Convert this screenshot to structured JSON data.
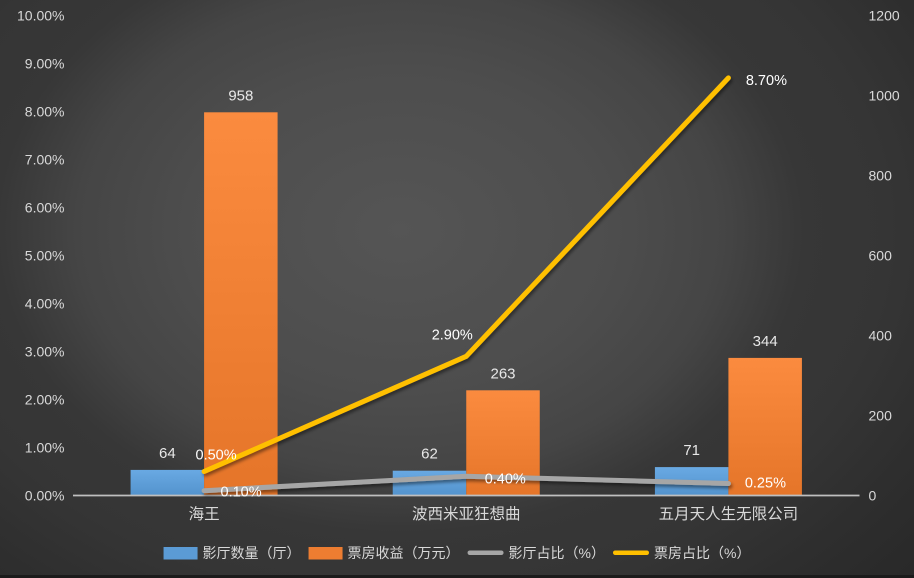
{
  "chart_data": {
    "type": "combo",
    "title": "",
    "categories": [
      "海王",
      "波西米亚狂想曲",
      "五月天人生无限公司"
    ],
    "series": [
      {
        "name": "影厅数量（厅）",
        "type": "bar",
        "axis": "right",
        "color": "#5B9BD5",
        "values": [
          64,
          62,
          71
        ],
        "labels": [
          "64",
          "62",
          "71"
        ]
      },
      {
        "name": "票房收益（万元）",
        "type": "bar",
        "axis": "right",
        "color": "#ED7D31",
        "values": [
          958,
          263,
          344
        ],
        "labels": [
          "958",
          "263",
          "344"
        ]
      },
      {
        "name": "影厅占比（%）",
        "type": "line",
        "axis": "left",
        "color": "#A6A6A6",
        "values": [
          0.1,
          0.4,
          0.25
        ],
        "labels": [
          "0.10%",
          "0.40%",
          "0.25%"
        ],
        "label_offsets": [
          [
            37,
            1
          ],
          [
            39,
            2
          ],
          [
            37,
            -1
          ]
        ]
      },
      {
        "name": "票房占比（%）",
        "type": "line",
        "axis": "left",
        "color": "#FFC000",
        "values": [
          0.5,
          2.9,
          8.7
        ],
        "labels": [
          "0.50%",
          "2.90%",
          "8.70%"
        ],
        "label_offsets": [
          [
            12,
            -17
          ],
          [
            -14,
            -22
          ],
          [
            38,
            2
          ]
        ]
      }
    ],
    "axes": {
      "left": {
        "min": 0,
        "max": 10,
        "step": 1,
        "format": "percent",
        "ticks": [
          "0.00%",
          "1.00%",
          "2.00%",
          "3.00%",
          "4.00%",
          "5.00%",
          "6.00%",
          "7.00%",
          "8.00%",
          "9.00%",
          "10.00%"
        ]
      },
      "right": {
        "min": 0,
        "max": 1200,
        "step": 200,
        "ticks": [
          "0",
          "200",
          "400",
          "600",
          "800",
          "1000",
          "1200"
        ]
      }
    },
    "legend": {
      "position": "bottom",
      "entries": [
        {
          "label": "影厅数量（厅）",
          "swatch": "bar",
          "color": "#5B9BD5"
        },
        {
          "label": "票房收益（万元）",
          "swatch": "bar",
          "color": "#ED7D31"
        },
        {
          "label": "影厅占比（%）",
          "swatch": "line",
          "color": "#A6A6A6"
        },
        {
          "label": "票房占比（%）",
          "swatch": "line",
          "color": "#FFC000"
        }
      ]
    },
    "grid": false,
    "background": "dark-gray-gradient",
    "text_color": "#D9D9D9",
    "label_color": "#FFFFFF",
    "axis_line_color": "#BFBFBF"
  }
}
